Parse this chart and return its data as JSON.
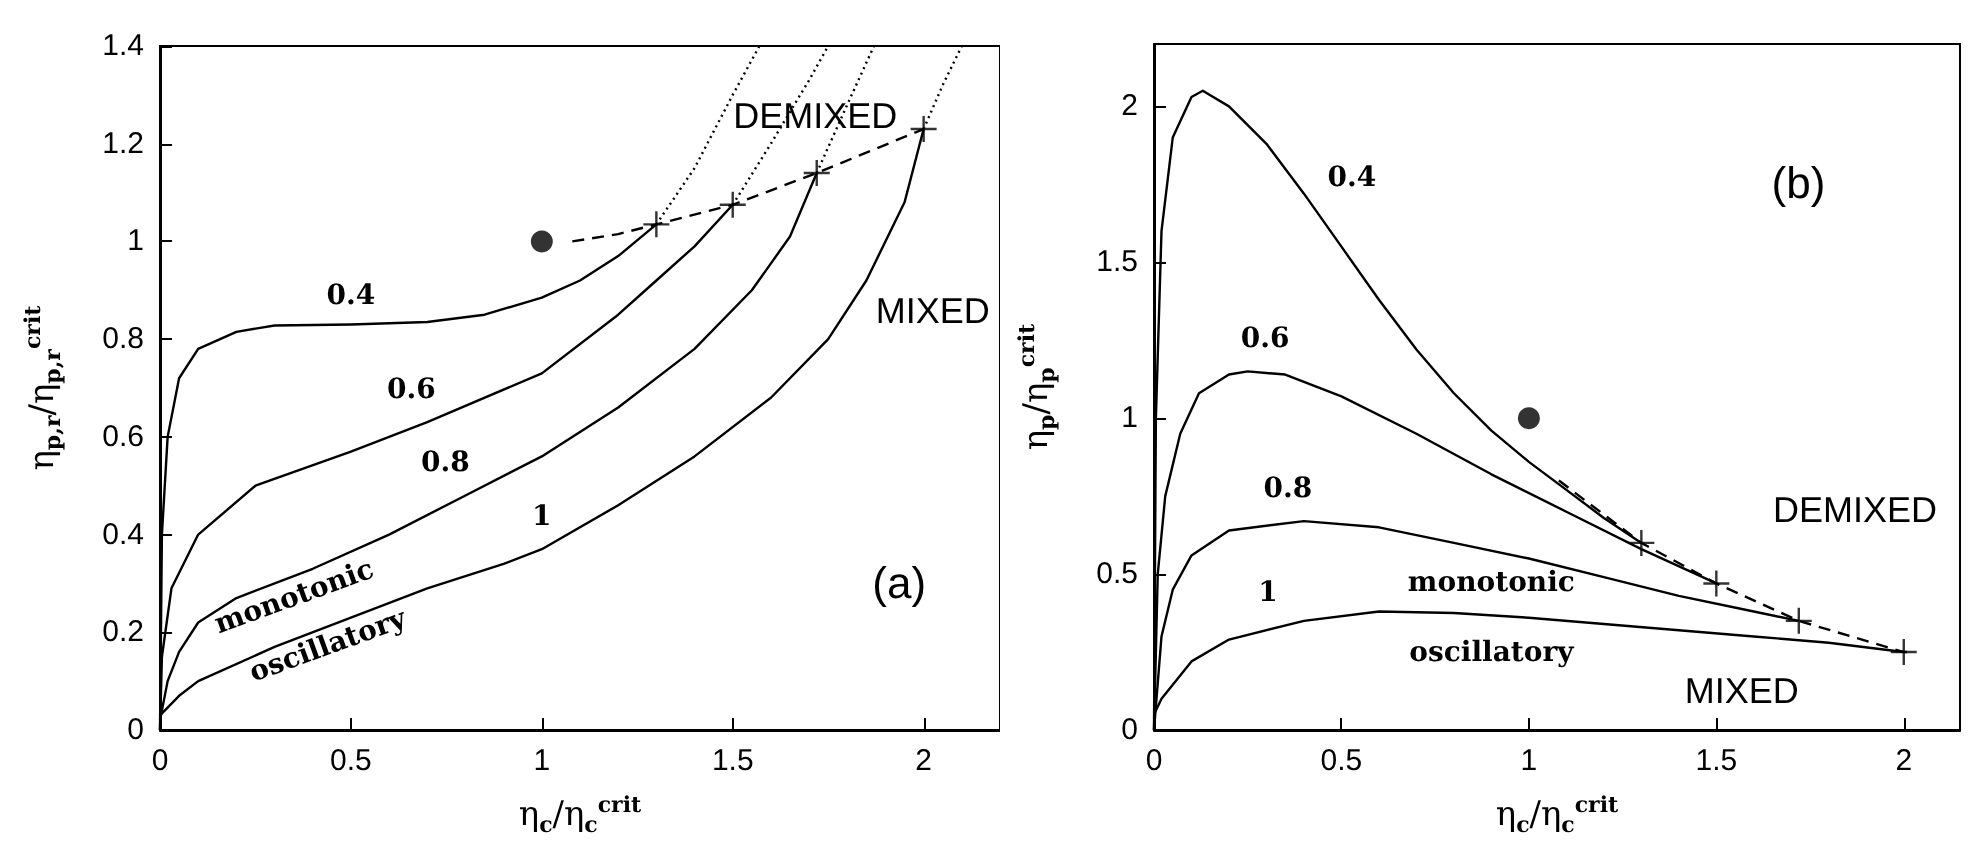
{
  "chart_data": [
    {
      "type": "line",
      "xlabel": "η$_{c}$/η$_{c}$$^{crit}$",
      "ylabel": "η$_{p,r}$/η$_{p,r}$$^{crit}$",
      "xlim": [
        0,
        2.2
      ],
      "ylim": [
        0,
        1.4
      ],
      "xticks": [
        0,
        0.5,
        1,
        1.5,
        2
      ],
      "yticks": [
        0,
        0.2,
        0.4,
        0.6,
        0.8,
        1,
        1.2,
        1.4
      ],
      "grid": false,
      "series": [
        {
          "name": "0.4",
          "color": "#000000",
          "line_style": "solid",
          "marker": "none",
          "x": [
            0,
            0.005,
            0.02,
            0.05,
            0.1,
            0.2,
            0.3,
            0.5,
            0.7,
            0.85,
            1.0,
            1.1,
            1.2,
            1.3
          ],
          "values": [
            0,
            0.4,
            0.6,
            0.72,
            0.78,
            0.815,
            0.828,
            0.83,
            0.835,
            0.85,
            0.885,
            0.92,
            0.97,
            1.035
          ]
        },
        {
          "name": "0.6",
          "color": "#000000",
          "line_style": "solid",
          "marker": "none",
          "x": [
            0,
            0.005,
            0.03,
            0.1,
            0.25,
            0.5,
            0.7,
            1.0,
            1.2,
            1.3,
            1.4,
            1.5
          ],
          "values": [
            0,
            0.15,
            0.29,
            0.4,
            0.5,
            0.57,
            0.63,
            0.73,
            0.85,
            0.92,
            0.99,
            1.075
          ]
        },
        {
          "name": "0.8",
          "color": "#000000",
          "line_style": "solid",
          "marker": "none",
          "x": [
            0,
            0.02,
            0.05,
            0.1,
            0.2,
            0.4,
            0.6,
            0.8,
            1.0,
            1.2,
            1.4,
            1.55,
            1.65,
            1.72
          ],
          "values": [
            0.02,
            0.1,
            0.16,
            0.22,
            0.27,
            0.33,
            0.4,
            0.48,
            0.56,
            0.66,
            0.78,
            0.9,
            1.01,
            1.14
          ]
        },
        {
          "name": "1",
          "color": "#000000",
          "line_style": "solid",
          "marker": "none",
          "x": [
            0,
            0.05,
            0.1,
            0.3,
            0.5,
            0.7,
            0.9,
            1.0,
            1.2,
            1.4,
            1.6,
            1.75,
            1.85,
            1.95,
            2.0
          ],
          "values": [
            0.03,
            0.07,
            0.1,
            0.17,
            0.23,
            0.29,
            0.34,
            0.37,
            0.46,
            0.56,
            0.68,
            0.8,
            0.92,
            1.08,
            1.23
          ]
        },
        {
          "color": "#000000",
          "line_style": "dotted",
          "marker": "none",
          "x": [
            1.3,
            1.4,
            1.5,
            1.57
          ],
          "values": [
            1.035,
            1.15,
            1.3,
            1.4
          ]
        },
        {
          "color": "#000000",
          "line_style": "dotted",
          "marker": "none",
          "x": [
            1.5,
            1.6,
            1.7,
            1.75
          ],
          "values": [
            1.075,
            1.2,
            1.33,
            1.4
          ]
        },
        {
          "color": "#000000",
          "line_style": "dotted",
          "marker": "none",
          "x": [
            1.72,
            1.8,
            1.87
          ],
          "values": [
            1.14,
            1.28,
            1.4
          ]
        },
        {
          "color": "#000000",
          "line_style": "dotted",
          "marker": "none",
          "x": [
            2.0,
            2.05,
            2.1
          ],
          "values": [
            1.23,
            1.32,
            1.4
          ]
        },
        {
          "color": "#000000",
          "line_style": "dashed",
          "marker": "none",
          "x": [
            1.08,
            1.2,
            1.3,
            1.5,
            1.72,
            2.0
          ],
          "values": [
            1.0,
            1.015,
            1.035,
            1.075,
            1.14,
            1.23
          ]
        },
        {
          "type": "scatter",
          "color": "#000000",
          "marker": "cross",
          "x": [
            1.3,
            1.5,
            1.72,
            2.0
          ],
          "values": [
            1.035,
            1.075,
            1.14,
            1.23
          ]
        },
        {
          "type": "scatter",
          "color": "#000000",
          "marker": "circle",
          "x": [
            1
          ],
          "values": [
            1
          ]
        }
      ],
      "annotations": [
        "monotonic",
        "oscillatory",
        "DEMIXED",
        "MIXED",
        "(a)"
      ]
    },
    {
      "type": "line",
      "xlabel": "η$_{c}$/η$_{c}$$^{crit}$",
      "ylabel": "η$_{p}$/η$_{p}$$^{crit}$",
      "xlim": [
        0,
        2.15
      ],
      "ylim": [
        0,
        2.2
      ],
      "xticks": [
        0,
        0.5,
        1,
        1.5,
        2
      ],
      "yticks": [
        0,
        0.5,
        1,
        1.5,
        2
      ],
      "grid": false,
      "series": [
        {
          "name": "0.4",
          "color": "#000000",
          "line_style": "solid",
          "marker": "none",
          "x": [
            0,
            0.005,
            0.02,
            0.05,
            0.1,
            0.13,
            0.2,
            0.3,
            0.4,
            0.5,
            0.6,
            0.7,
            0.8,
            0.9,
            1.0,
            1.1,
            1.2,
            1.3
          ],
          "values": [
            0,
            1.0,
            1.6,
            1.9,
            2.03,
            2.05,
            2.0,
            1.88,
            1.72,
            1.55,
            1.38,
            1.22,
            1.08,
            0.96,
            0.86,
            0.77,
            0.68,
            0.6
          ]
        },
        {
          "name": "0.6",
          "color": "#000000",
          "line_style": "solid",
          "marker": "none",
          "x": [
            0,
            0.01,
            0.03,
            0.07,
            0.12,
            0.2,
            0.25,
            0.35,
            0.5,
            0.7,
            0.9,
            1.1,
            1.3,
            1.5
          ],
          "values": [
            0,
            0.5,
            0.75,
            0.95,
            1.08,
            1.14,
            1.15,
            1.14,
            1.07,
            0.95,
            0.82,
            0.7,
            0.58,
            0.47
          ]
        },
        {
          "name": "0.8",
          "color": "#000000",
          "line_style": "solid",
          "marker": "none",
          "x": [
            0,
            0.02,
            0.05,
            0.1,
            0.2,
            0.4,
            0.6,
            0.8,
            1.0,
            1.2,
            1.4,
            1.6,
            1.72
          ],
          "values": [
            0,
            0.3,
            0.45,
            0.56,
            0.64,
            0.67,
            0.65,
            0.6,
            0.55,
            0.49,
            0.43,
            0.38,
            0.35
          ]
        },
        {
          "name": "1",
          "color": "#000000",
          "line_style": "solid",
          "marker": "none",
          "x": [
            0,
            0.02,
            0.1,
            0.2,
            0.4,
            0.6,
            0.8,
            1.0,
            1.2,
            1.4,
            1.6,
            1.8,
            2.0
          ],
          "values": [
            0.05,
            0.1,
            0.22,
            0.29,
            0.35,
            0.38,
            0.375,
            0.36,
            0.34,
            0.32,
            0.3,
            0.28,
            0.25
          ]
        },
        {
          "color": "#000000",
          "line_style": "dashed",
          "marker": "none",
          "x": [
            1.08,
            1.3,
            1.5,
            1.72,
            2.0,
            2.03
          ],
          "values": [
            0.8,
            0.6,
            0.47,
            0.35,
            0.25,
            0.25
          ]
        },
        {
          "type": "scatter",
          "color": "#000000",
          "marker": "cross",
          "x": [
            1.3,
            1.5,
            1.72,
            2.0
          ],
          "values": [
            0.6,
            0.47,
            0.35,
            0.25
          ]
        },
        {
          "type": "scatter",
          "color": "#000000",
          "marker": "circle",
          "x": [
            1
          ],
          "values": [
            1
          ]
        }
      ],
      "annotations": [
        "monotonic",
        "oscillatory",
        "DEMIXED",
        "MIXED",
        "(b)"
      ]
    }
  ]
}
